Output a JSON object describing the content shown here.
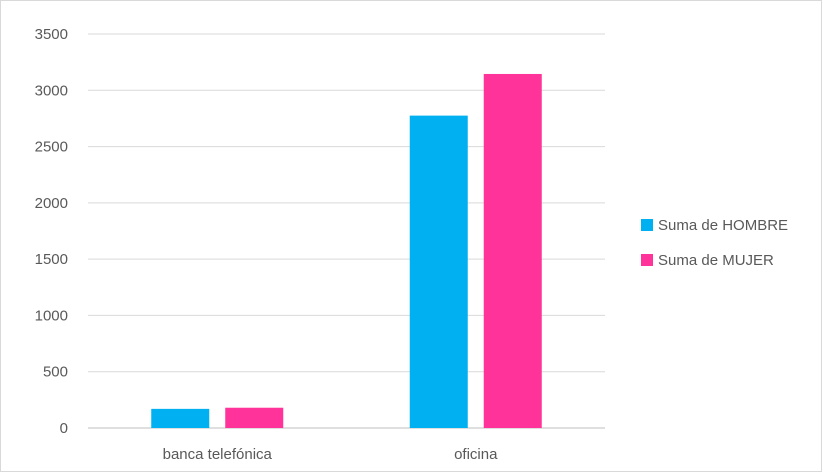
{
  "chart_data": {
    "type": "bar",
    "categories": [
      "banca telefónica",
      "oficina"
    ],
    "series": [
      {
        "name": "Suma de HOMBRE",
        "values": [
          170,
          2775
        ],
        "color": "#00b0f0"
      },
      {
        "name": "Suma de MUJER",
        "values": [
          180,
          3145
        ],
        "color": "#ff3399"
      }
    ],
    "ylim": [
      0,
      3500
    ],
    "yticks": [
      0,
      500,
      1000,
      1500,
      2000,
      2500,
      3000,
      3500
    ],
    "grid": true,
    "legend_position": "right",
    "title": "",
    "xlabel": "",
    "ylabel": ""
  }
}
